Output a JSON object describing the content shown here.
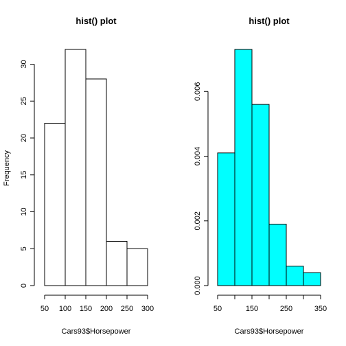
{
  "chart_data": [
    {
      "type": "bar",
      "title": "hist() plot",
      "xlabel": "Cars93$Horsepower",
      "ylabel": "Frequency",
      "bin_edges": [
        50,
        100,
        150,
        200,
        250,
        300
      ],
      "values": [
        22,
        32,
        28,
        6,
        5
      ],
      "xlim": [
        50,
        300
      ],
      "ylim": [
        0,
        32
      ],
      "x_ticks": [
        50,
        100,
        150,
        200,
        250,
        300
      ],
      "y_ticks": [
        0,
        5,
        10,
        15,
        20,
        25,
        30
      ],
      "fill_color": "#ffffff",
      "grid": false
    },
    {
      "type": "bar",
      "title": "hist() plot",
      "xlabel": "Cars93$Horsepower",
      "ylabel": "",
      "bin_edges": [
        50,
        100,
        150,
        200,
        250,
        300,
        350
      ],
      "values": [
        0.0041,
        0.0073,
        0.0056,
        0.0019,
        0.0006,
        0.0004
      ],
      "xlim": [
        50,
        350
      ],
      "ylim": [
        0,
        0.0073
      ],
      "x_ticks": [
        50,
        150,
        250,
        350
      ],
      "x_minor_ticks": [
        100,
        200,
        300
      ],
      "y_ticks": [
        0.0,
        0.002,
        0.004,
        0.006
      ],
      "y_tick_labels": [
        "0.000",
        "0.002",
        "0.004",
        "0.006"
      ],
      "fill_color": "#00ffff",
      "grid": false
    }
  ]
}
